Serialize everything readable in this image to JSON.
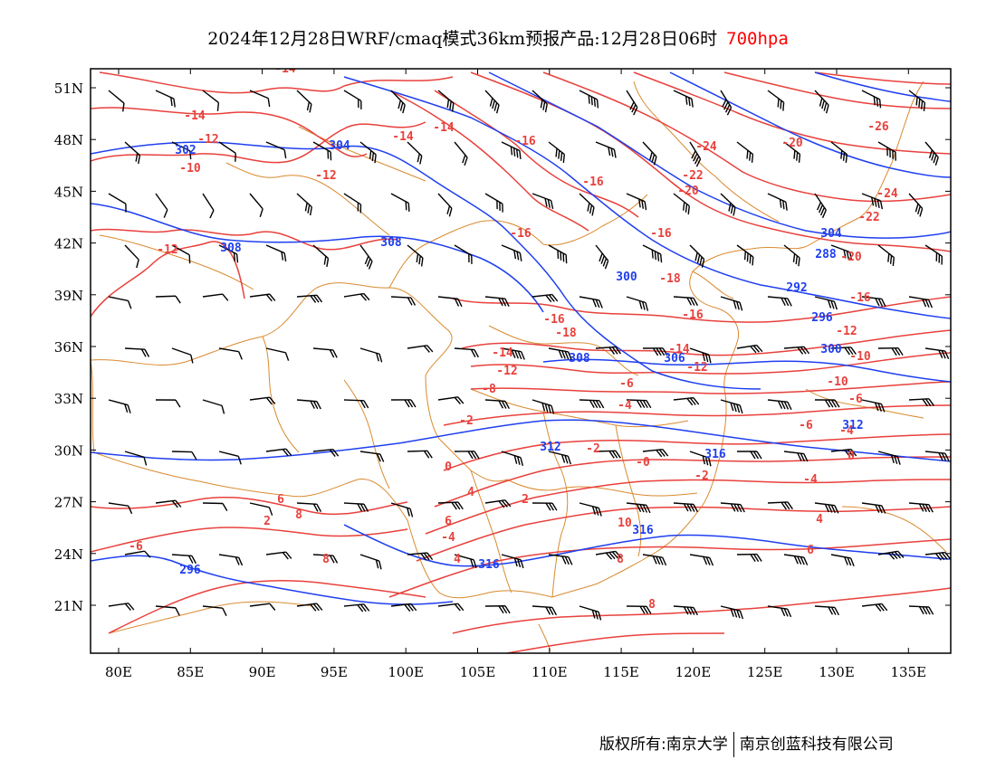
{
  "title": {
    "main": "2024年12月28日WRF/cmaq模式36km预报产品:12月28日06时",
    "level": "700hpa"
  },
  "colors": {
    "temperature": "#e8413c",
    "geopotential": "#1f3ff0",
    "border": "#d98a2f",
    "wind": "#000000"
  },
  "axes": {
    "lat_labels": [
      "51N",
      "48N",
      "45N",
      "42N",
      "39N",
      "36N",
      "33N",
      "30N",
      "27N",
      "24N",
      "21N"
    ],
    "lon_labels": [
      "80E",
      "85E",
      "90E",
      "95E",
      "100E",
      "105E",
      "110E",
      "115E",
      "120E",
      "125E",
      "130E",
      "135E"
    ]
  },
  "temperature_labels": [
    "-14",
    "-14",
    "-14",
    "-12",
    "-14",
    "-16",
    "-26",
    "-10",
    "-12",
    "-24",
    "-20",
    "-16",
    "-22",
    "-20",
    "-24",
    "-22",
    "-12",
    "-16",
    "-16",
    "-20",
    "-18",
    "-16",
    "-16",
    "-18",
    "-16",
    "-14",
    "-14",
    "-12",
    "-12",
    "-10",
    "-12",
    "-10",
    "-8",
    "-6",
    "-6",
    "-4",
    "-2",
    "-6",
    "-4",
    "-2",
    "-0",
    "0",
    "-2",
    "0",
    "-4",
    "2",
    "4",
    "4",
    "6",
    "6",
    "8",
    "10",
    "-4",
    "2",
    "-6",
    "4",
    "6",
    "8",
    "8",
    "8"
  ],
  "height_labels": [
    "302",
    "304",
    "308",
    "308",
    "300",
    "304",
    "288",
    "292",
    "296",
    "308",
    "300",
    "306",
    "312",
    "312",
    "316",
    "316",
    "316",
    "296"
  ],
  "footer": {
    "left": "版权所有:南京大学",
    "right": "南京创蓝科技有限公司"
  }
}
